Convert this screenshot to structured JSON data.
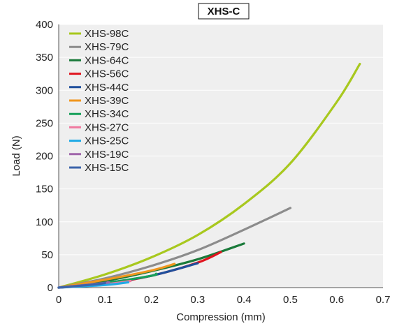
{
  "chart_data": {
    "type": "line",
    "title": "XHS-C",
    "xlabel": "Compression (mm)",
    "ylabel": "Load (N)",
    "xlim": [
      0,
      0.7
    ],
    "ylim": [
      0,
      400
    ],
    "x_ticks": [
      "0",
      "0.1",
      "0.2",
      "0.3",
      "0.4",
      "0.5",
      "0.6",
      "0.7"
    ],
    "y_ticks": [
      "0",
      "50",
      "100",
      "150",
      "200",
      "250",
      "300",
      "350",
      "400"
    ],
    "grid": true,
    "legend_position": "top-left",
    "series": [
      {
        "name": "XHS-98C",
        "color": "#a8c81e",
        "x": [
          0,
          0.1,
          0.2,
          0.3,
          0.4,
          0.5,
          0.6,
          0.65
        ],
        "y": [
          0,
          20,
          46,
          80,
          127,
          189,
          282,
          340
        ]
      },
      {
        "name": "XHS-79C",
        "color": "#8c8c8c",
        "x": [
          0,
          0.1,
          0.2,
          0.3,
          0.4,
          0.5
        ],
        "y": [
          0,
          14,
          33,
          57,
          88,
          121
        ]
      },
      {
        "name": "XHS-64C",
        "color": "#1a7a3a",
        "x": [
          0,
          0.1,
          0.2,
          0.3,
          0.4
        ],
        "y": [
          0,
          10,
          25,
          43,
          67
        ]
      },
      {
        "name": "XHS-56C",
        "color": "#e0141e",
        "x": [
          0,
          0.1,
          0.2,
          0.3,
          0.35
        ],
        "y": [
          0,
          6,
          18,
          38,
          54
        ]
      },
      {
        "name": "XHS-44C",
        "color": "#1f4f9c",
        "x": [
          0,
          0.1,
          0.2,
          0.3
        ],
        "y": [
          0,
          7,
          18,
          37
        ]
      },
      {
        "name": "XHS-39C",
        "color": "#f0961e",
        "x": [
          0,
          0.1,
          0.2,
          0.25
        ],
        "y": [
          0,
          12,
          26,
          36
        ]
      },
      {
        "name": "XHS-34C",
        "color": "#17a05a",
        "x": [
          0,
          0.1,
          0.2,
          0.21
        ],
        "y": [
          0,
          7,
          18,
          21
        ]
      },
      {
        "name": "XHS-27C",
        "color": "#f07aa0",
        "x": [
          0,
          0.1,
          0.155
        ],
        "y": [
          0,
          5,
          10
        ]
      },
      {
        "name": "XHS-25C",
        "color": "#1eaae6",
        "x": [
          0,
          0.1,
          0.15
        ],
        "y": [
          0,
          4,
          8
        ]
      },
      {
        "name": "XHS-19C",
        "color": "#a066aa",
        "x": [
          0,
          0.1,
          0.105
        ],
        "y": [
          0,
          7,
          8
        ]
      },
      {
        "name": "XHS-15C",
        "color": "#3c64aa",
        "x": [
          0,
          0.08,
          0.1
        ],
        "y": [
          0,
          5,
          7
        ]
      }
    ]
  }
}
